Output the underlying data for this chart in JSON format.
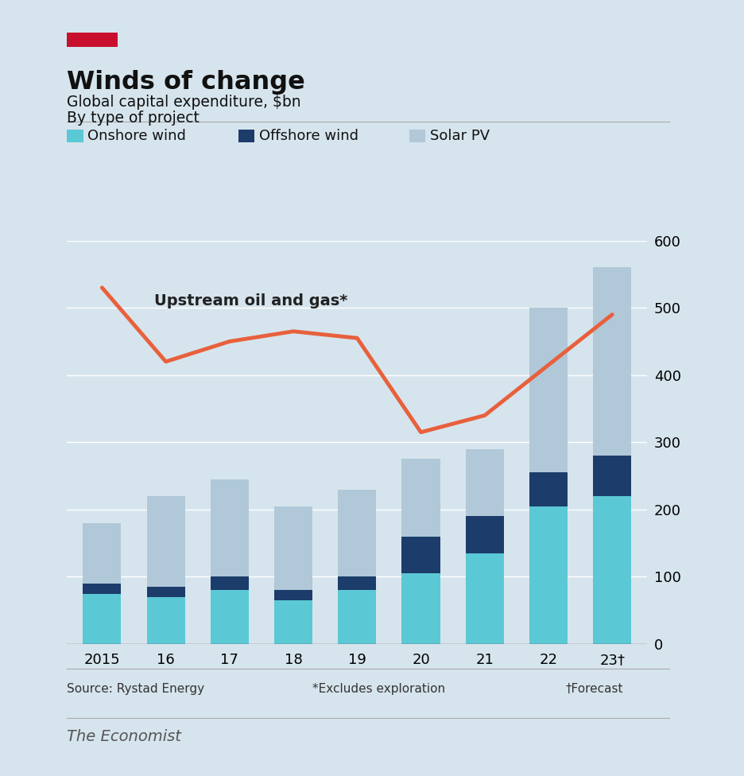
{
  "title": "Winds of change",
  "subtitle1": "Global capital expenditure, $bn",
  "subtitle2": "By type of project",
  "years": [
    "2015",
    "16",
    "17",
    "18",
    "19",
    "20",
    "21",
    "22",
    "23†"
  ],
  "onshore_wind": [
    75,
    70,
    80,
    65,
    80,
    105,
    135,
    205,
    220
  ],
  "offshore_wind": [
    15,
    15,
    20,
    15,
    20,
    55,
    55,
    50,
    60
  ],
  "solar_pv": [
    90,
    135,
    145,
    125,
    130,
    115,
    100,
    245,
    280
  ],
  "oil_gas": [
    530,
    420,
    450,
    465,
    455,
    315,
    340,
    415,
    490
  ],
  "colors": {
    "onshore_wind": "#5BC8D5",
    "offshore_wind": "#1C3D6B",
    "solar_pv": "#B0C8D8",
    "oil_gas": "#E8603C",
    "background": "#D6E4ED",
    "grid": "#ffffff"
  },
  "ylim": [
    0,
    600
  ],
  "yticks": [
    0,
    100,
    200,
    300,
    400,
    500,
    600
  ],
  "source_text": "Source: Rystad Energy",
  "footnote1": "*Excludes exploration",
  "footnote2": "†Forecast",
  "oil_gas_label": "Upstream oil and gas*",
  "legend_items": [
    "Onshore wind",
    "Offshore wind",
    "Solar PV"
  ],
  "red_box_color": "#C8102E",
  "economist_label": "The Economist",
  "bar_width": 0.6
}
